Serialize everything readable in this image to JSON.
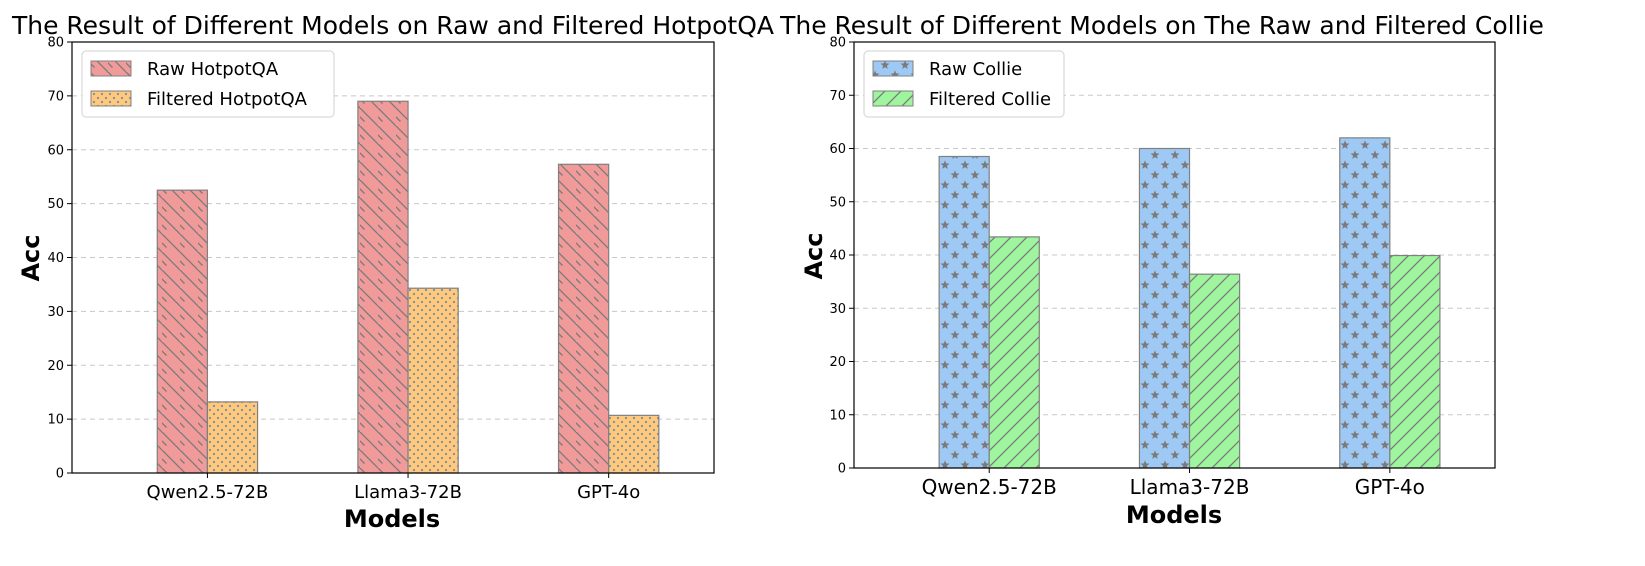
{
  "chart_data": [
    {
      "type": "bar",
      "title": "The Result of Different Models on Raw and Filtered HotpotQA",
      "xlabel": "Models",
      "ylabel": "Acc",
      "categories": [
        "Qwen2.5-72B",
        "Llama3-72B",
        "GPT-4o"
      ],
      "ylim": [
        0,
        80
      ],
      "yticks": [
        0,
        10,
        20,
        30,
        40,
        50,
        60,
        70,
        80
      ],
      "grid": "y-dashed",
      "legend_position": "top-left",
      "series": [
        {
          "name": "Raw HotpotQA",
          "values": [
            52.5,
            69.0,
            57.3
          ],
          "color": "#f09a9a",
          "hatch": "backslash"
        },
        {
          "name": "Filtered HotpotQA",
          "values": [
            13.2,
            34.3,
            10.7
          ],
          "color": "#ffc87a",
          "hatch": "dots"
        }
      ]
    },
    {
      "type": "bar",
      "title": "The Result of Different Models on The Raw and Filtered Collie",
      "xlabel": "Models",
      "ylabel": "Acc",
      "categories": [
        "Qwen2.5-72B",
        "Llama3-72B",
        "GPT-4o"
      ],
      "ylim": [
        0,
        80
      ],
      "yticks": [
        0,
        10,
        20,
        30,
        40,
        50,
        60,
        70,
        80
      ],
      "grid": "y-dashed",
      "legend_position": "top-left",
      "series": [
        {
          "name": "Raw Collie",
          "values": [
            58.5,
            60.0,
            62.0
          ],
          "color": "#9ec9f5",
          "hatch": "stars"
        },
        {
          "name": "Filtered Collie",
          "values": [
            43.4,
            36.4,
            39.9
          ],
          "color": "#9ef59e",
          "hatch": "slash"
        }
      ]
    }
  ]
}
